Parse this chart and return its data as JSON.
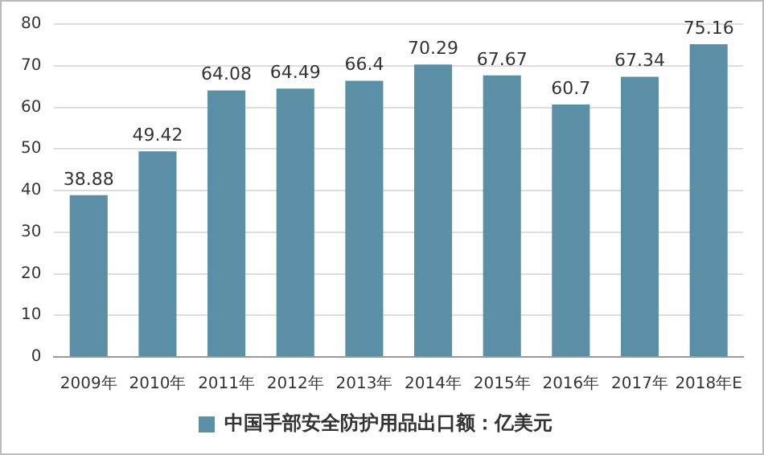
{
  "chart_data": {
    "type": "bar",
    "categories": [
      "2009年",
      "2010年",
      "2011年",
      "2012年",
      "2013年",
      "2014年",
      "2015年",
      "2016年",
      "2017年",
      "2018年E"
    ],
    "series": [
      {
        "name": "中国手部安全防护用品出口额：亿美元",
        "color": "#5b8fa6",
        "values": [
          38.88,
          49.42,
          64.08,
          64.49,
          66.4,
          70.29,
          67.67,
          60.7,
          67.34,
          75.16
        ]
      }
    ],
    "ylim": [
      0,
      80
    ],
    "yticks": [
      0,
      10,
      20,
      30,
      40,
      50,
      60,
      70,
      80
    ],
    "grid": "y",
    "legend": "bottom",
    "data_labels": true
  }
}
